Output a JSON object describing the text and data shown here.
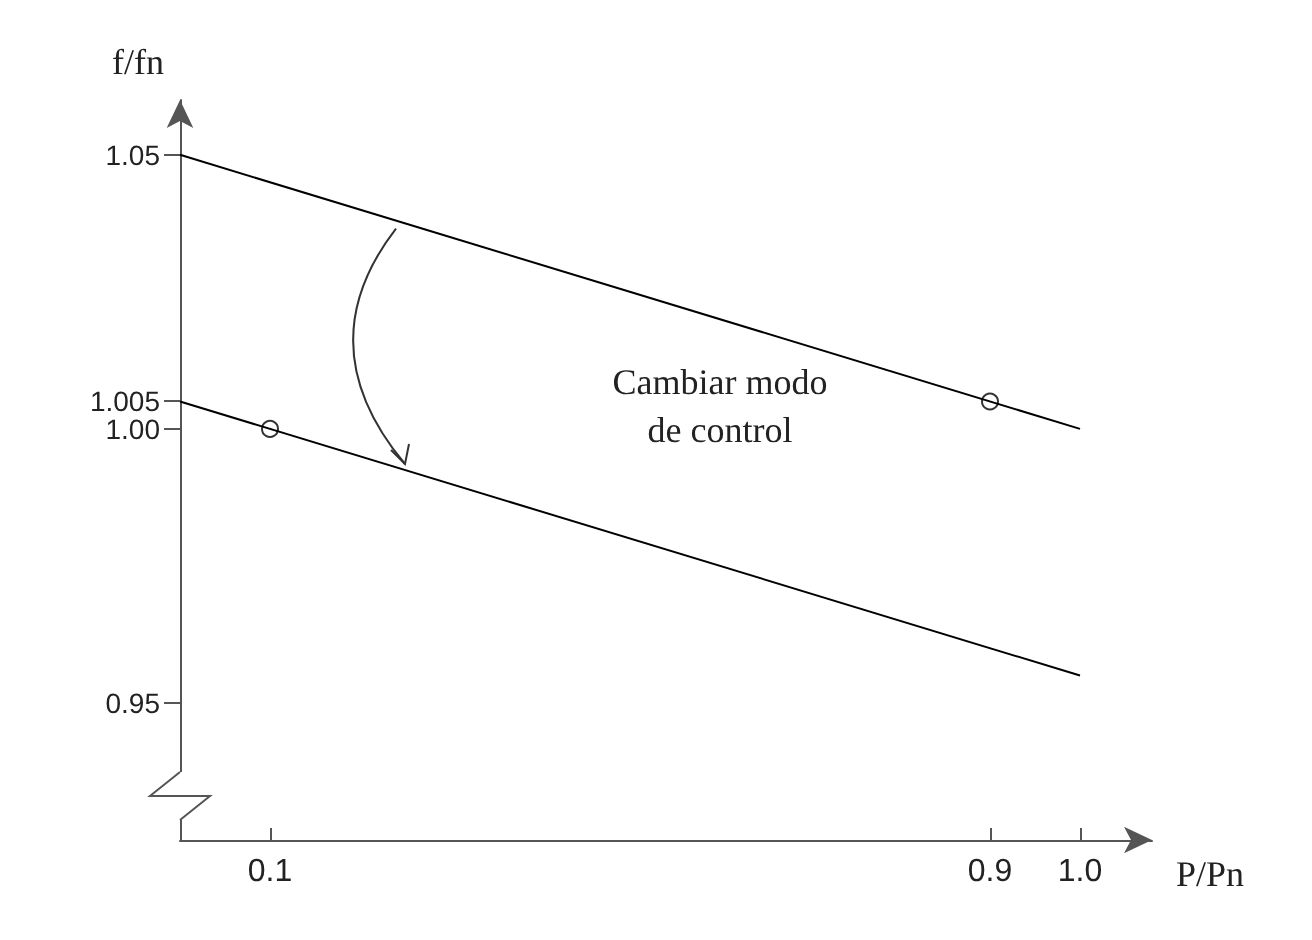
{
  "chart_data": {
    "type": "line",
    "xlabel": "P/Pn",
    "ylabel": "f/fn",
    "annotations": [
      "Cambiar modo de control"
    ],
    "xlim": [
      0,
      1.08
    ],
    "xticks": [
      0.1,
      0.9,
      {
        "value": 1,
        "label": "1.0"
      }
    ],
    "ylim": [
      0.925,
      1.06
    ],
    "yticks": [
      0.95,
      {
        "value": 1,
        "label": "1.00"
      },
      1.005,
      1.05
    ],
    "grid": false,
    "series": [
      {
        "color": "#000000",
        "x": [
          0,
          1
        ],
        "values": [
          1.05,
          1.0
        ],
        "marker": "none",
        "line_style": "solid"
      },
      {
        "color": "#000000",
        "x": [
          0,
          1
        ],
        "values": [
          1.005,
          0.955
        ],
        "marker": "none",
        "line_style": "solid"
      },
      {
        "type": "scatter",
        "color": "#000000",
        "x": [
          0.9
        ],
        "values": [
          1.005
        ],
        "marker": "circle"
      },
      {
        "type": "scatter",
        "color": "#000000",
        "x": [
          0.1
        ],
        "values": [
          1.0
        ],
        "marker": "circle"
      }
    ]
  }
}
